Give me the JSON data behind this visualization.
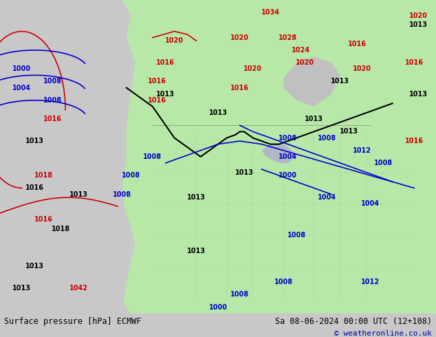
{
  "title_left": "Surface pressure [hPa] ECMWF",
  "title_right": "Sa 08-06-2024 00:00 UTC (12+108)",
  "copyright": "© weatheronline.co.uk",
  "bg_color": "#d0d0d0",
  "land_color": "#b8e8b0",
  "ocean_color": "#d8d8d8",
  "fig_width": 6.34,
  "fig_height": 4.9,
  "dpi": 100,
  "font_size_labels": 8,
  "font_size_title": 8.5,
  "isobar_colors": {
    "black": "#000000",
    "blue": "#0000cc",
    "red": "#cc0000"
  }
}
